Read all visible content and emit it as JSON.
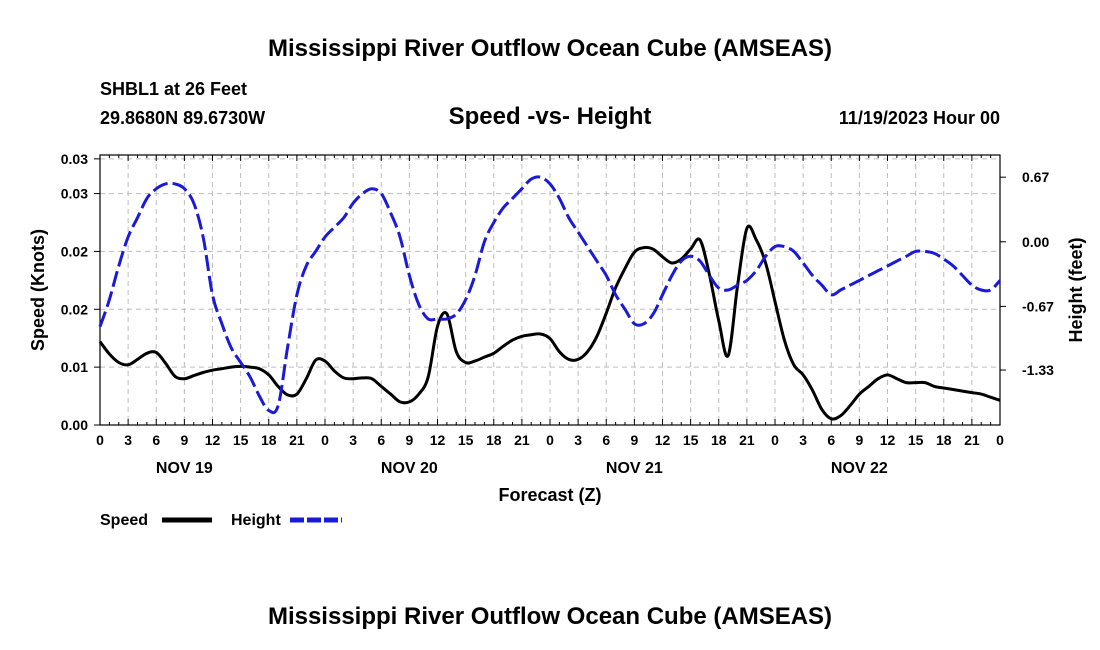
{
  "header": {
    "title": "Mississippi River Outflow Ocean Cube (AMSEAS)",
    "footer_title": "Mississippi River Outflow Ocean Cube (AMSEAS)",
    "station": "SHBL1 at 26 Feet",
    "location": "29.8680N  89.6730W",
    "date": "11/19/2023 Hour 00"
  },
  "chart_data": {
    "type": "line",
    "title": "Speed -vs- Height",
    "xlabel": "Forecast (Z)",
    "ylabel": "Speed (Knots)",
    "y2label": "Height (feet)",
    "x_unit": "forecast hour",
    "xlim": [
      0,
      96
    ],
    "ylim": [
      0,
      0.035
    ],
    "y2lim": [
      -1.9,
      0.9
    ],
    "y_ticks": [
      0,
      0.0075,
      0.015,
      0.0225,
      0.03,
      0.0345
    ],
    "y_tick_labels": [
      "0.00",
      "0.01",
      "0.02",
      "0.02",
      "0.03",
      "0.03"
    ],
    "y2_ticks": [
      0.67,
      0.0,
      -0.67,
      -1.33
    ],
    "y2_tick_labels": [
      "0.67",
      "0.00",
      "-0.67",
      "-1.33"
    ],
    "x_tick_labels": [
      "0",
      "3",
      "6",
      "9",
      "12",
      "15",
      "18",
      "21",
      "0",
      "3",
      "6",
      "9",
      "12",
      "15",
      "18",
      "21",
      "0",
      "3",
      "6",
      "9",
      "12",
      "15",
      "18",
      "21",
      "0",
      "3",
      "6",
      "9",
      "12",
      "15",
      "18",
      "21",
      "0"
    ],
    "day_labels": [
      {
        "label": "NOV 19",
        "hour": 9
      },
      {
        "label": "NOV 20",
        "hour": 33
      },
      {
        "label": "NOV 21",
        "hour": 57
      },
      {
        "label": "NOV 22",
        "hour": 81
      }
    ],
    "grid": true,
    "legend": [
      {
        "name": "Speed",
        "color": "#000000",
        "style": "solid"
      },
      {
        "name": "Height",
        "color": "#1a1ad8",
        "style": "dashed"
      }
    ],
    "series": [
      {
        "name": "Speed",
        "axis": "left",
        "color": "#000000",
        "x": [
          0,
          1,
          2,
          3,
          4,
          5,
          6,
          7,
          8,
          9,
          10,
          11,
          12,
          13,
          14,
          15,
          16,
          17,
          18,
          19,
          20,
          21,
          22,
          23,
          24,
          25,
          26,
          27,
          28,
          29,
          30,
          31,
          32,
          33,
          34,
          35,
          36,
          37,
          38,
          39,
          40,
          41,
          42,
          43,
          44,
          45,
          46,
          47,
          48,
          49,
          50,
          51,
          52,
          53,
          54,
          55,
          56,
          57,
          58,
          59,
          60,
          61,
          62,
          63,
          64,
          65,
          66,
          67,
          68,
          69,
          70,
          71,
          72,
          73,
          74,
          75,
          76,
          77,
          78,
          79,
          80,
          81,
          82,
          83,
          84,
          85,
          86,
          87,
          88,
          89,
          90,
          91,
          92,
          93,
          94,
          95,
          96
        ],
        "values": [
          0.0108,
          0.0092,
          0.0081,
          0.0078,
          0.0085,
          0.0093,
          0.0094,
          0.008,
          0.0063,
          0.006,
          0.0064,
          0.0068,
          0.0071,
          0.0073,
          0.0075,
          0.0076,
          0.0075,
          0.0073,
          0.0065,
          0.005,
          0.0039,
          0.004,
          0.006,
          0.0084,
          0.0083,
          0.007,
          0.0061,
          0.006,
          0.0061,
          0.006,
          0.005,
          0.004,
          0.003,
          0.003,
          0.004,
          0.0062,
          0.0128,
          0.0144,
          0.0095,
          0.0081,
          0.0083,
          0.0088,
          0.0093,
          0.0102,
          0.011,
          0.0115,
          0.0117,
          0.0118,
          0.0112,
          0.0095,
          0.0085,
          0.0085,
          0.0095,
          0.0115,
          0.0145,
          0.0178,
          0.0203,
          0.0224,
          0.023,
          0.0228,
          0.0218,
          0.021,
          0.0215,
          0.0228,
          0.024,
          0.0195,
          0.0135,
          0.009,
          0.018,
          0.0255,
          0.024,
          0.021,
          0.016,
          0.011,
          0.0078,
          0.0065,
          0.0045,
          0.002,
          0.0008,
          0.0012,
          0.0025,
          0.004,
          0.005,
          0.006,
          0.0065,
          0.006,
          0.0055,
          0.0055,
          0.0055,
          0.005,
          0.0048,
          0.0046,
          0.0044,
          0.0042,
          0.004,
          0.0036,
          0.0032
        ]
      },
      {
        "name": "Height",
        "axis": "right",
        "color": "#1a1ad8",
        "x": [
          0,
          1,
          2,
          3,
          4,
          5,
          6,
          7,
          8,
          9,
          10,
          11,
          12,
          13,
          14,
          15,
          16,
          17,
          18,
          19,
          20,
          21,
          22,
          23,
          24,
          25,
          26,
          27,
          28,
          29,
          30,
          31,
          32,
          33,
          34,
          35,
          36,
          37,
          38,
          39,
          40,
          41,
          42,
          43,
          44,
          45,
          46,
          47,
          48,
          49,
          50,
          51,
          52,
          53,
          54,
          55,
          56,
          57,
          58,
          59,
          60,
          61,
          62,
          63,
          64,
          65,
          66,
          67,
          68,
          69,
          70,
          71,
          72,
          73,
          74,
          75,
          76,
          77,
          78,
          79,
          80,
          81,
          82,
          83,
          84,
          85,
          86,
          87,
          88,
          89,
          90,
          91,
          92,
          93,
          94,
          95,
          96
        ],
        "values": [
          -0.88,
          -0.6,
          -0.25,
          0.05,
          0.25,
          0.45,
          0.55,
          0.6,
          0.6,
          0.55,
          0.4,
          0.05,
          -0.55,
          -0.85,
          -1.1,
          -1.25,
          -1.4,
          -1.6,
          -1.75,
          -1.7,
          -1.1,
          -0.55,
          -0.25,
          -0.1,
          0.05,
          0.15,
          0.25,
          0.4,
          0.5,
          0.55,
          0.5,
          0.3,
          0.05,
          -0.35,
          -0.65,
          -0.8,
          -0.8,
          -0.8,
          -0.75,
          -0.6,
          -0.35,
          0.0,
          0.2,
          0.35,
          0.45,
          0.55,
          0.65,
          0.67,
          0.6,
          0.45,
          0.25,
          0.1,
          -0.05,
          -0.2,
          -0.35,
          -0.55,
          -0.7,
          -0.85,
          -0.85,
          -0.75,
          -0.55,
          -0.35,
          -0.2,
          -0.15,
          -0.2,
          -0.35,
          -0.48,
          -0.5,
          -0.45,
          -0.4,
          -0.3,
          -0.15,
          -0.05,
          -0.05,
          -0.1,
          -0.22,
          -0.35,
          -0.45,
          -0.55,
          -0.5,
          -0.45,
          -0.4,
          -0.35,
          -0.3,
          -0.25,
          -0.2,
          -0.15,
          -0.1,
          -0.1,
          -0.12,
          -0.18,
          -0.25,
          -0.35,
          -0.45,
          -0.5,
          -0.5,
          -0.4
        ]
      }
    ]
  }
}
